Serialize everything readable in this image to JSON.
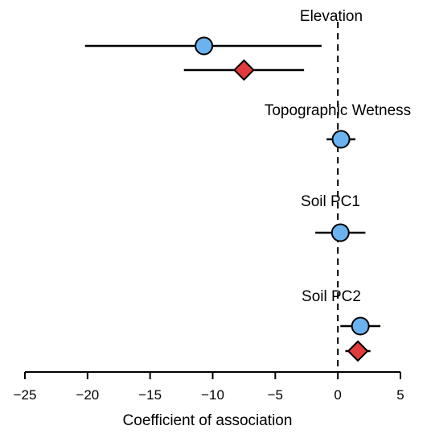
{
  "chart_data": {
    "type": "scatter",
    "subtype": "forest-plot",
    "xlabel": "Coefficient of association",
    "xlim": [
      -25,
      5
    ],
    "xticks": [
      -25,
      -20,
      -15,
      -10,
      -5,
      0,
      5
    ],
    "xtick_labels": [
      "−25",
      "−20",
      "−15",
      "−10",
      "−5",
      "0",
      "5"
    ],
    "reference_line": 0,
    "grid": false,
    "legend": "none",
    "groups": [
      {
        "label": "Elevation",
        "points": [
          {
            "marker": "circle",
            "color": "#6bb3f0",
            "estimate": -10.7,
            "lower": -20.2,
            "upper": -1.3
          },
          {
            "marker": "diamond",
            "color": "#e23b3b",
            "estimate": -7.5,
            "lower": -12.3,
            "upper": -2.7
          }
        ]
      },
      {
        "label": "Topographic Wetness",
        "points": [
          {
            "marker": "circle",
            "color": "#6bb3f0",
            "estimate": 0.25,
            "lower": -0.9,
            "upper": 1.4
          }
        ]
      },
      {
        "label": "Soil PC1",
        "points": [
          {
            "marker": "circle",
            "color": "#6bb3f0",
            "estimate": 0.2,
            "lower": -1.8,
            "upper": 2.2
          }
        ]
      },
      {
        "label": "Soil PC2",
        "points": [
          {
            "marker": "circle",
            "color": "#6bb3f0",
            "estimate": 1.8,
            "lower": 0.2,
            "upper": 3.4
          },
          {
            "marker": "diamond",
            "color": "#e23b3b",
            "estimate": 1.6,
            "lower": 0.6,
            "upper": 2.6
          }
        ]
      }
    ]
  }
}
